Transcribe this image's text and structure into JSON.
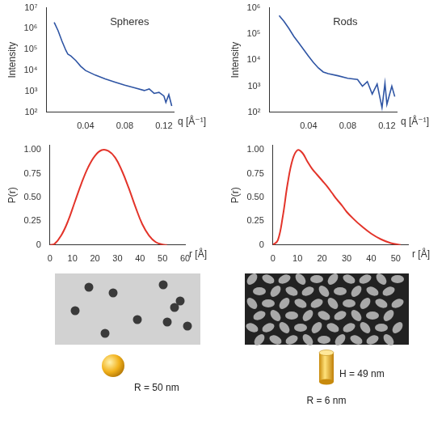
{
  "chart_data": [
    {
      "type": "line",
      "log": "y",
      "annotation": "Spheres",
      "y_label": "Intensity",
      "x_label": "q [Å⁻¹]",
      "color": "#2f55a4",
      "grid": false,
      "x": [
        0.008,
        0.012,
        0.016,
        0.02,
        0.022,
        0.025,
        0.03,
        0.035,
        0.04,
        0.05,
        0.06,
        0.07,
        0.08,
        0.09,
        0.1,
        0.105,
        0.11,
        0.115,
        0.12,
        0.122,
        0.125,
        0.128
      ],
      "values": [
        2000000,
        800000,
        250000,
        90000,
        60000,
        50000,
        30000,
        16000,
        10000,
        6000,
        4000,
        2800,
        2000,
        1500,
        1100,
        1300,
        800,
        900,
        600,
        300,
        700,
        200
      ],
      "xlim": [
        0,
        0.13
      ],
      "xticks": [
        0.04,
        0.08,
        0.12
      ],
      "ylim": [
        100,
        10000000
      ],
      "yticks": [
        {
          "value": 100,
          "label": "10²"
        },
        {
          "value": 1000,
          "label": "10³"
        },
        {
          "value": 10000,
          "label": "10⁴"
        },
        {
          "value": 100000,
          "label": "10⁵"
        },
        {
          "value": 1000000,
          "label": "10⁶"
        },
        {
          "value": 10000000,
          "label": "10⁷"
        }
      ]
    },
    {
      "type": "line",
      "log": "y",
      "annotation": "Rods",
      "y_label": "Intensity",
      "x_label": "q [Å⁻¹]",
      "color": "#2f55a4",
      "grid": false,
      "x": [
        0.01,
        0.015,
        0.02,
        0.025,
        0.03,
        0.035,
        0.04,
        0.045,
        0.05,
        0.055,
        0.06,
        0.07,
        0.08,
        0.09,
        0.095,
        0.1,
        0.105,
        0.11,
        0.115,
        0.118,
        0.12,
        0.125,
        0.128
      ],
      "values": [
        500000,
        300000,
        160000,
        80000,
        45000,
        25000,
        14000,
        8000,
        5000,
        3500,
        3000,
        2500,
        2000,
        1800,
        1000,
        1500,
        500,
        1200,
        150,
        1300,
        200,
        1000,
        400
      ],
      "xlim": [
        0,
        0.13
      ],
      "xticks": [
        0.04,
        0.08,
        0.12
      ],
      "ylim": [
        100,
        1000000
      ],
      "yticks": [
        {
          "value": 100,
          "label": "10²"
        },
        {
          "value": 1000,
          "label": "10³"
        },
        {
          "value": 10000,
          "label": "10⁴"
        },
        {
          "value": 100000,
          "label": "10⁵"
        },
        {
          "value": 1000000,
          "label": "10⁶"
        }
      ]
    },
    {
      "type": "line",
      "y_label": "P(r)",
      "x_label": "r [Å]",
      "color": "#e3342a",
      "grid": false,
      "x": [
        0,
        2,
        5,
        8,
        11,
        14,
        17,
        20,
        23,
        26,
        29,
        32,
        35,
        38,
        41,
        44,
        47,
        50,
        52
      ],
      "values": [
        0,
        0.01,
        0.1,
        0.25,
        0.45,
        0.65,
        0.82,
        0.94,
        1.0,
        0.99,
        0.92,
        0.78,
        0.6,
        0.4,
        0.22,
        0.1,
        0.03,
        0.005,
        0
      ],
      "xlim": [
        0,
        60
      ],
      "xticks": [
        0,
        10,
        20,
        30,
        40,
        50,
        60
      ],
      "ylim": [
        0,
        1.05
      ],
      "yticks": [
        0,
        {
          "value": 0.25,
          "label": "0.25"
        },
        {
          "value": 0.5,
          "label": "0.50"
        },
        {
          "value": 0.75,
          "label": "0.75"
        },
        {
          "value": 1,
          "label": "1.00"
        }
      ]
    },
    {
      "type": "line",
      "y_label": "P(r)",
      "x_label": "r [Å]",
      "color": "#e3342a",
      "grid": false,
      "x": [
        0,
        2,
        4,
        6,
        8,
        10,
        12,
        14,
        16,
        18,
        20,
        22,
        24,
        26,
        28,
        30,
        33,
        36,
        40,
        44,
        48,
        52
      ],
      "values": [
        0,
        0.05,
        0.3,
        0.65,
        0.9,
        1.0,
        0.97,
        0.88,
        0.8,
        0.74,
        0.68,
        0.62,
        0.55,
        0.48,
        0.42,
        0.35,
        0.27,
        0.2,
        0.12,
        0.06,
        0.02,
        0
      ],
      "xlim": [
        0,
        55
      ],
      "xticks": [
        0,
        10,
        20,
        30,
        40,
        50
      ],
      "ylim": [
        0,
        1.05
      ],
      "yticks": [
        0,
        {
          "value": 0.25,
          "label": "0.25"
        },
        {
          "value": 0.5,
          "label": "0.50"
        },
        {
          "value": 0.75,
          "label": "0.75"
        },
        {
          "value": 1,
          "label": "1.00"
        }
      ]
    }
  ],
  "shapes": [
    {
      "shape": "sphere",
      "labels": [
        "R = 50 nm"
      ]
    },
    {
      "shape": "rod",
      "labels": [
        "H = 49 nm",
        "R = 6 nm"
      ]
    }
  ]
}
